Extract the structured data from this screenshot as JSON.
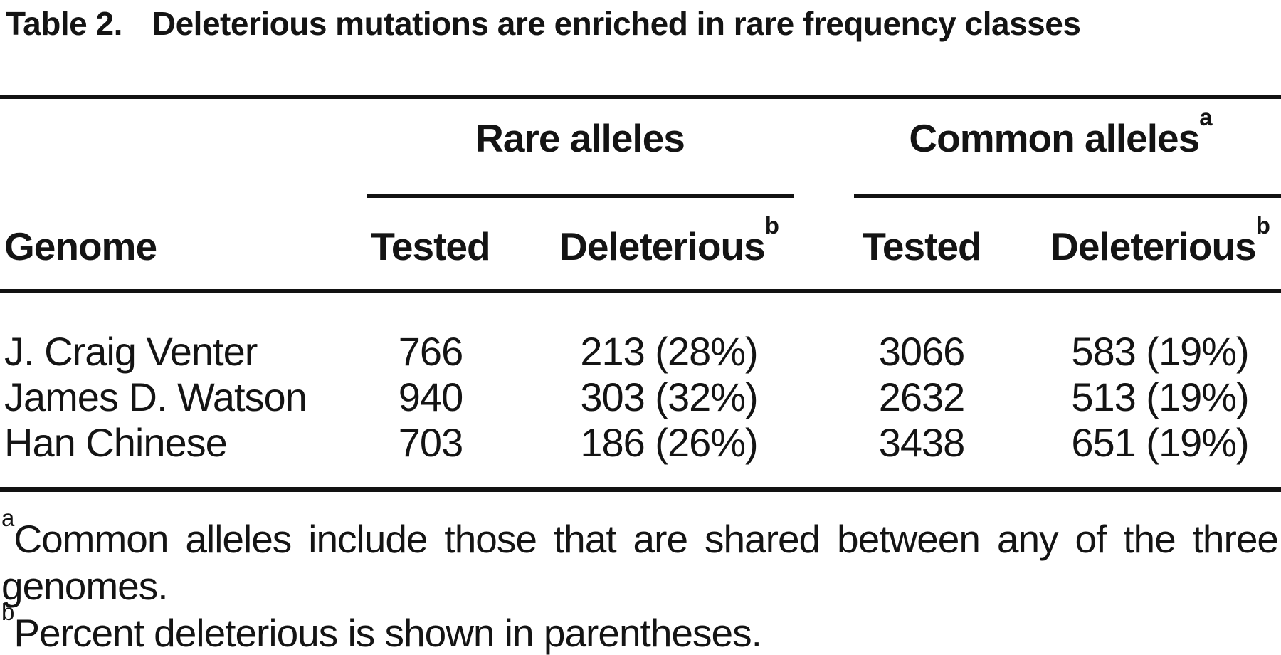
{
  "table": {
    "label": "Table 2.",
    "caption": "Deleterious mutations are enriched in rare frequency classes",
    "row_header": "Genome",
    "groups": [
      {
        "label": "Rare alleles",
        "sup": ""
      },
      {
        "label": "Common alleles",
        "sup": "a"
      }
    ],
    "columns": [
      {
        "label": "Tested",
        "sup": ""
      },
      {
        "label": "Deleterious",
        "sup": "b"
      },
      {
        "label": "Tested",
        "sup": ""
      },
      {
        "label": "Deleterious",
        "sup": "b"
      }
    ],
    "rows": [
      {
        "genome": "J. Craig Venter",
        "rare_tested": "766",
        "rare_deleterious": "213 (28%)",
        "common_tested": "3066",
        "common_deleterious": "583 (19%)"
      },
      {
        "genome": "James D. Watson",
        "rare_tested": "940",
        "rare_deleterious": "303 (32%)",
        "common_tested": "2632",
        "common_deleterious": "513 (19%)"
      },
      {
        "genome": "Han Chinese",
        "rare_tested": "703",
        "rare_deleterious": "186 (26%)",
        "common_tested": "3438",
        "common_deleterious": "651 (19%)"
      }
    ],
    "footnotes": [
      {
        "sup": "a",
        "text": "Common alleles include those that are shared between any of the three genomes."
      },
      {
        "sup": "b",
        "text": "Percent deleterious is shown in parentheses."
      }
    ],
    "colors": {
      "text": "#141414",
      "rule": "#121212",
      "background": "#ffffff"
    }
  }
}
